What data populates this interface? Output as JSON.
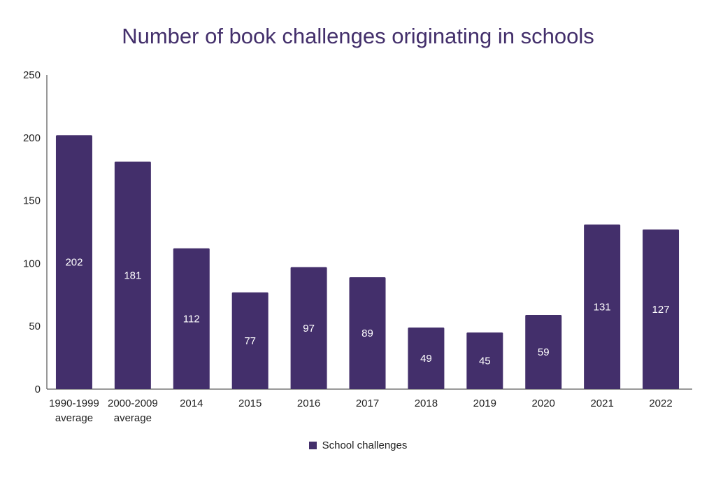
{
  "colors": {
    "bar": "#432f6b",
    "title": "#432f6b",
    "axis": "#333333",
    "bar_label": "#ffffff"
  },
  "chart_data": {
    "type": "bar",
    "title": "Number of book challenges originating in schools",
    "xlabel": "",
    "ylabel": "",
    "ylim": [
      0,
      250
    ],
    "yticks": [
      0,
      50,
      100,
      150,
      200,
      250
    ],
    "grid": false,
    "legend_position": "bottom",
    "categories": [
      [
        "1990-1999",
        "average"
      ],
      [
        "2000-2009",
        "average"
      ],
      [
        "2014"
      ],
      [
        "2015"
      ],
      [
        "2016"
      ],
      [
        "2017"
      ],
      [
        "2018"
      ],
      [
        "2019"
      ],
      [
        "2020"
      ],
      [
        "2021"
      ],
      [
        "2022"
      ]
    ],
    "series": [
      {
        "name": "School challenges",
        "values": [
          202,
          181,
          112,
          77,
          97,
          89,
          49,
          45,
          59,
          131,
          127
        ]
      }
    ]
  }
}
